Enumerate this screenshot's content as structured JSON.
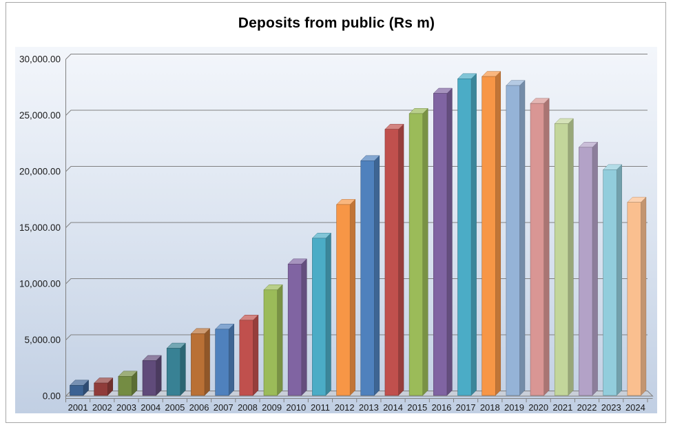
{
  "chart_data": {
    "type": "bar",
    "style": "3d-column",
    "title": "Deposits from public (Rs m)",
    "categories": [
      "2001",
      "2002",
      "2003",
      "2004",
      "2005",
      "2006",
      "2007",
      "2008",
      "2009",
      "2010",
      "2011",
      "2012",
      "2013",
      "2014",
      "2015",
      "2016",
      "2017",
      "2018",
      "2019",
      "2020",
      "2021",
      "2022",
      "2023",
      "2024"
    ],
    "values": [
      900,
      1100,
      1700,
      3100,
      4200,
      5500,
      5900,
      6700,
      9400,
      11700,
      14000,
      17000,
      20900,
      23700,
      25100,
      26900,
      28200,
      28400,
      27600,
      26000,
      24200,
      22100,
      20100,
      17200
    ],
    "bar_colors": [
      "#3C6292",
      "#903C3A",
      "#748C43",
      "#604B7A",
      "#388194",
      "#B97035",
      "#4F81BD",
      "#C0504D",
      "#9BBB59",
      "#8064A2",
      "#4BACC6",
      "#F79646",
      "#4F81BD",
      "#C0504D",
      "#9BBB59",
      "#8064A2",
      "#4BACC6",
      "#F79646",
      "#95B3D7",
      "#D99694",
      "#C3D69B",
      "#B3A2C7",
      "#92CDDC",
      "#FABF8F"
    ],
    "xlabel": "",
    "ylabel": "",
    "ylim": [
      0,
      30000
    ],
    "ytick_interval": 5000,
    "ytick_labels": [
      "0.00",
      "5,000.00",
      "10,000.00",
      "15,000.00",
      "20,000.00",
      "25,000.00",
      "30,000.00"
    ],
    "grid": true,
    "legend": false,
    "colors": {
      "gridline": "#808080",
      "axis": "#808080",
      "floor_fill": "#C9CFD9",
      "tick_text": "#1A1A1A",
      "title_text": "#000000",
      "plot_gradient": [
        "#F3F6FB",
        "#D9E2EF",
        "#C1CFE3"
      ],
      "page_background": "#FFFFFF",
      "frame_border": "#A6A6A6"
    }
  }
}
